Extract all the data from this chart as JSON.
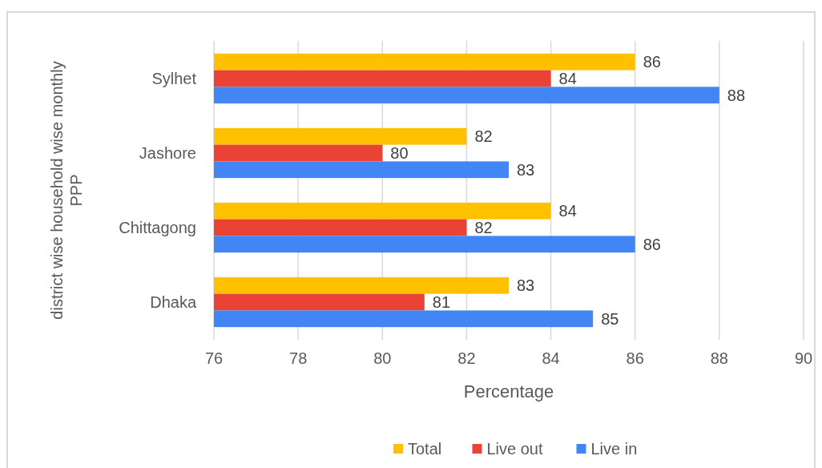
{
  "chart_data": {
    "type": "bar",
    "orientation": "horizontal",
    "categories": [
      "Sylhet",
      "Jashore",
      "Chittagong",
      "Dhaka"
    ],
    "series": [
      {
        "name": "Total",
        "color": "#ffc000",
        "values": [
          86,
          82,
          84,
          83
        ]
      },
      {
        "name": "Live out",
        "color": "#ea4335",
        "values": [
          84,
          80,
          82,
          81
        ]
      },
      {
        "name": "Live in",
        "color": "#4285f4",
        "values": [
          88,
          83,
          86,
          85
        ]
      }
    ],
    "xlim": [
      76,
      90
    ],
    "xticks": [
      76,
      78,
      80,
      82,
      84,
      86,
      88,
      90
    ],
    "xlabel": "Percentage",
    "ylabel": "district wise household wise monthly PPP",
    "grid": "x",
    "legend": "bottom",
    "data_labels": true
  }
}
